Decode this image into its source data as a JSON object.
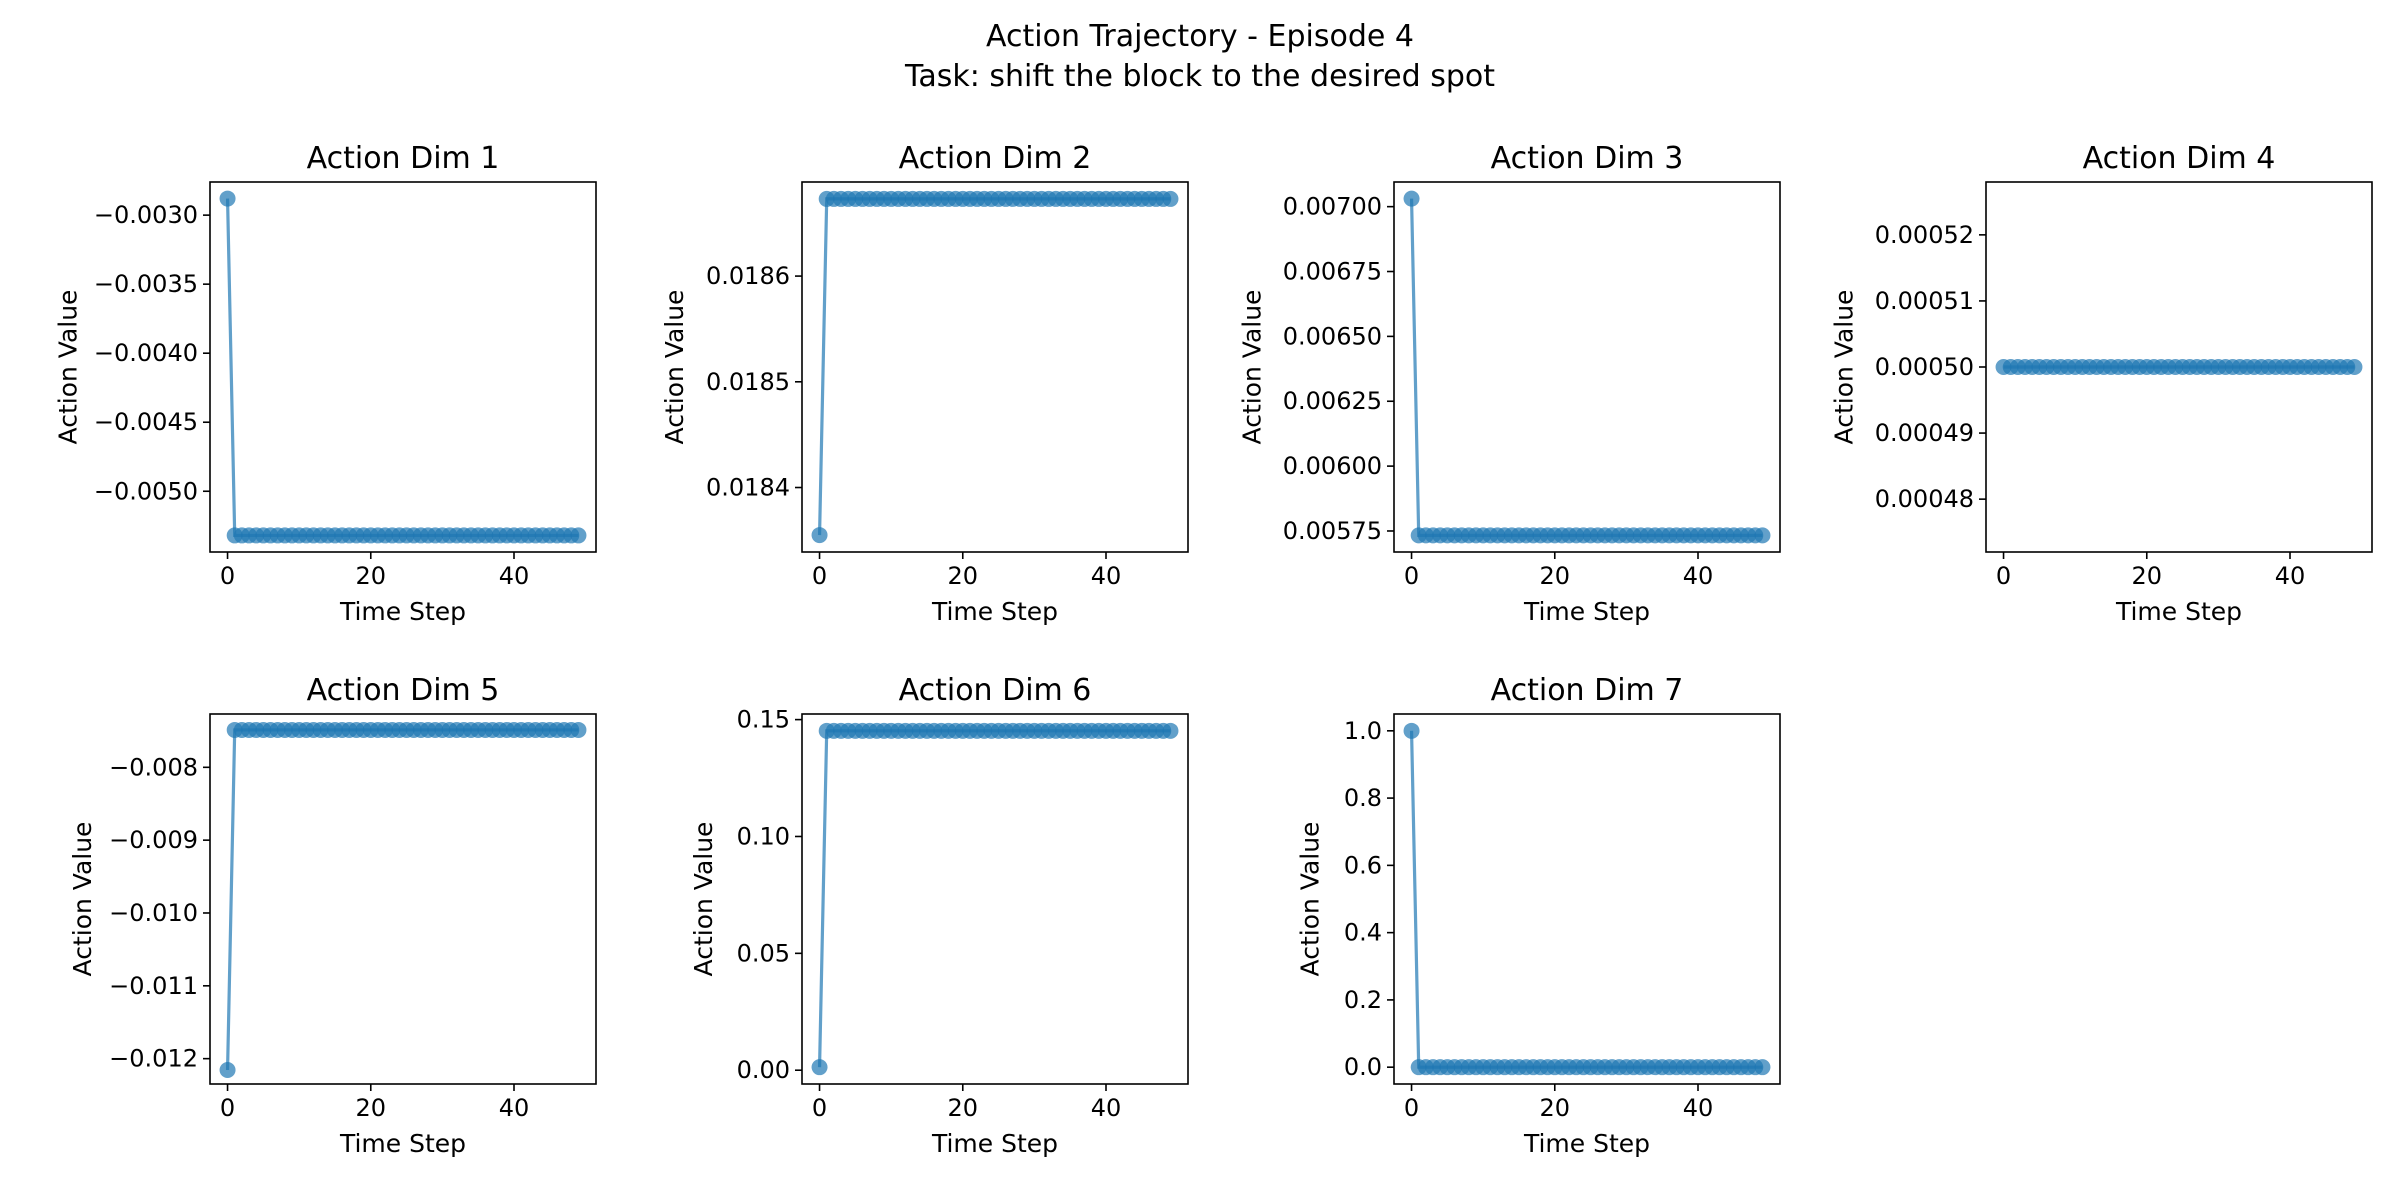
{
  "figure": {
    "title_line1": "Action Trajectory - Episode 4",
    "title_line2": "Task: shift the block to the desired spot"
  },
  "colors": {
    "series": "#1f77b4",
    "axis": "#000000",
    "background": "#ffffff"
  },
  "chart_data": [
    {
      "type": "line",
      "title": "Action Dim 1",
      "xlabel": "Time Step",
      "ylabel": "Action Value",
      "xlim": [
        -2.45,
        51.45
      ],
      "ylim": [
        -0.00544,
        -0.00276
      ],
      "xticks": [
        0,
        20,
        40
      ],
      "xtick_labels": [
        "0",
        "20",
        "40"
      ],
      "yticks": [
        -0.003,
        -0.0035,
        -0.004,
        -0.0045,
        -0.005
      ],
      "ytick_labels": [
        "−0.0030",
        "−0.0035",
        "−0.0040",
        "−0.0045",
        "−0.0050"
      ],
      "n_steps": 50,
      "first_value": -0.00288,
      "rest_value": -0.00532,
      "grid": false,
      "markers": true
    },
    {
      "type": "line",
      "title": "Action Dim 2",
      "xlabel": "Time Step",
      "ylabel": "Action Value",
      "xlim": [
        -2.45,
        51.45
      ],
      "ylim": [
        0.018339,
        0.018689
      ],
      "xticks": [
        0,
        20,
        40
      ],
      "xtick_labels": [
        "0",
        "20",
        "40"
      ],
      "yticks": [
        0.0184,
        0.0185,
        0.0186
      ],
      "ytick_labels": [
        "0.0184",
        "0.0185",
        "0.0186"
      ],
      "n_steps": 50,
      "first_value": 0.018355,
      "rest_value": 0.018673,
      "grid": false,
      "markers": true
    },
    {
      "type": "line",
      "title": "Action Dim 3",
      "xlabel": "Time Step",
      "ylabel": "Action Value",
      "xlim": [
        -2.45,
        51.45
      ],
      "ylim": [
        0.005669,
        0.007095
      ],
      "xticks": [
        0,
        20,
        40
      ],
      "xtick_labels": [
        "0",
        "20",
        "40"
      ],
      "yticks": [
        0.007,
        0.00675,
        0.0065,
        0.00625,
        0.006,
        0.00575
      ],
      "ytick_labels": [
        "0.00700",
        "0.00675",
        "0.00650",
        "0.00625",
        "0.00600",
        "0.00575"
      ],
      "n_steps": 50,
      "first_value": 0.007031,
      "rest_value": 0.005733,
      "grid": false,
      "markers": true
    },
    {
      "type": "line",
      "title": "Action Dim 4",
      "xlabel": "Time Step",
      "ylabel": "Action Value",
      "xlim": [
        -2.45,
        51.45
      ],
      "ylim": [
        0.000472,
        0.000528
      ],
      "xticks": [
        0,
        20,
        40
      ],
      "xtick_labels": [
        "0",
        "20",
        "40"
      ],
      "yticks": [
        0.00052,
        0.00051,
        0.0005,
        0.00049,
        0.00048
      ],
      "ytick_labels": [
        "0.00052",
        "0.00051",
        "0.00050",
        "0.00049",
        "0.00048"
      ],
      "n_steps": 50,
      "first_value": 0.0005,
      "rest_value": 0.0005,
      "grid": false,
      "markers": true
    },
    {
      "type": "line",
      "title": "Action Dim 5",
      "xlabel": "Time Step",
      "ylabel": "Action Value",
      "xlim": [
        -2.45,
        51.45
      ],
      "ylim": [
        -0.012348,
        -0.007268
      ],
      "xticks": [
        0,
        20,
        40
      ],
      "xtick_labels": [
        "0",
        "20",
        "40"
      ],
      "yticks": [
        -0.008,
        -0.009,
        -0.01,
        -0.011,
        -0.012
      ],
      "ytick_labels": [
        "−0.008",
        "−0.009",
        "−0.010",
        "−0.011",
        "−0.012"
      ],
      "n_steps": 50,
      "first_value": -0.012156,
      "rest_value": -0.007487,
      "grid": false,
      "markers": true
    },
    {
      "type": "line",
      "title": "Action Dim 6",
      "xlabel": "Time Step",
      "ylabel": "Action Value",
      "xlim": [
        -2.45,
        51.45
      ],
      "ylim": [
        -0.0059,
        0.1524
      ],
      "xticks": [
        0,
        20,
        40
      ],
      "xtick_labels": [
        "0",
        "20",
        "40"
      ],
      "yticks": [
        0,
        0.05,
        0.1,
        0.15
      ],
      "ytick_labels": [
        "0.00",
        "0.05",
        "0.10",
        "0.15"
      ],
      "n_steps": 50,
      "first_value": 0.0013,
      "rest_value": 0.1452,
      "grid": false,
      "markers": true
    },
    {
      "type": "line",
      "title": "Action Dim 7",
      "xlabel": "Time Step",
      "ylabel": "Action Value",
      "xlim": [
        -2.45,
        51.45
      ],
      "ylim": [
        -0.05,
        1.05
      ],
      "xticks": [
        0,
        20,
        40
      ],
      "xtick_labels": [
        "0",
        "20",
        "40"
      ],
      "yticks": [
        0,
        0.2,
        0.4,
        0.6,
        0.8,
        1.0
      ],
      "ytick_labels": [
        "0.0",
        "0.2",
        "0.4",
        "0.6",
        "0.8",
        "1.0"
      ],
      "n_steps": 50,
      "first_value": 1.0,
      "rest_value": 0.0,
      "grid": false,
      "markers": true
    }
  ]
}
